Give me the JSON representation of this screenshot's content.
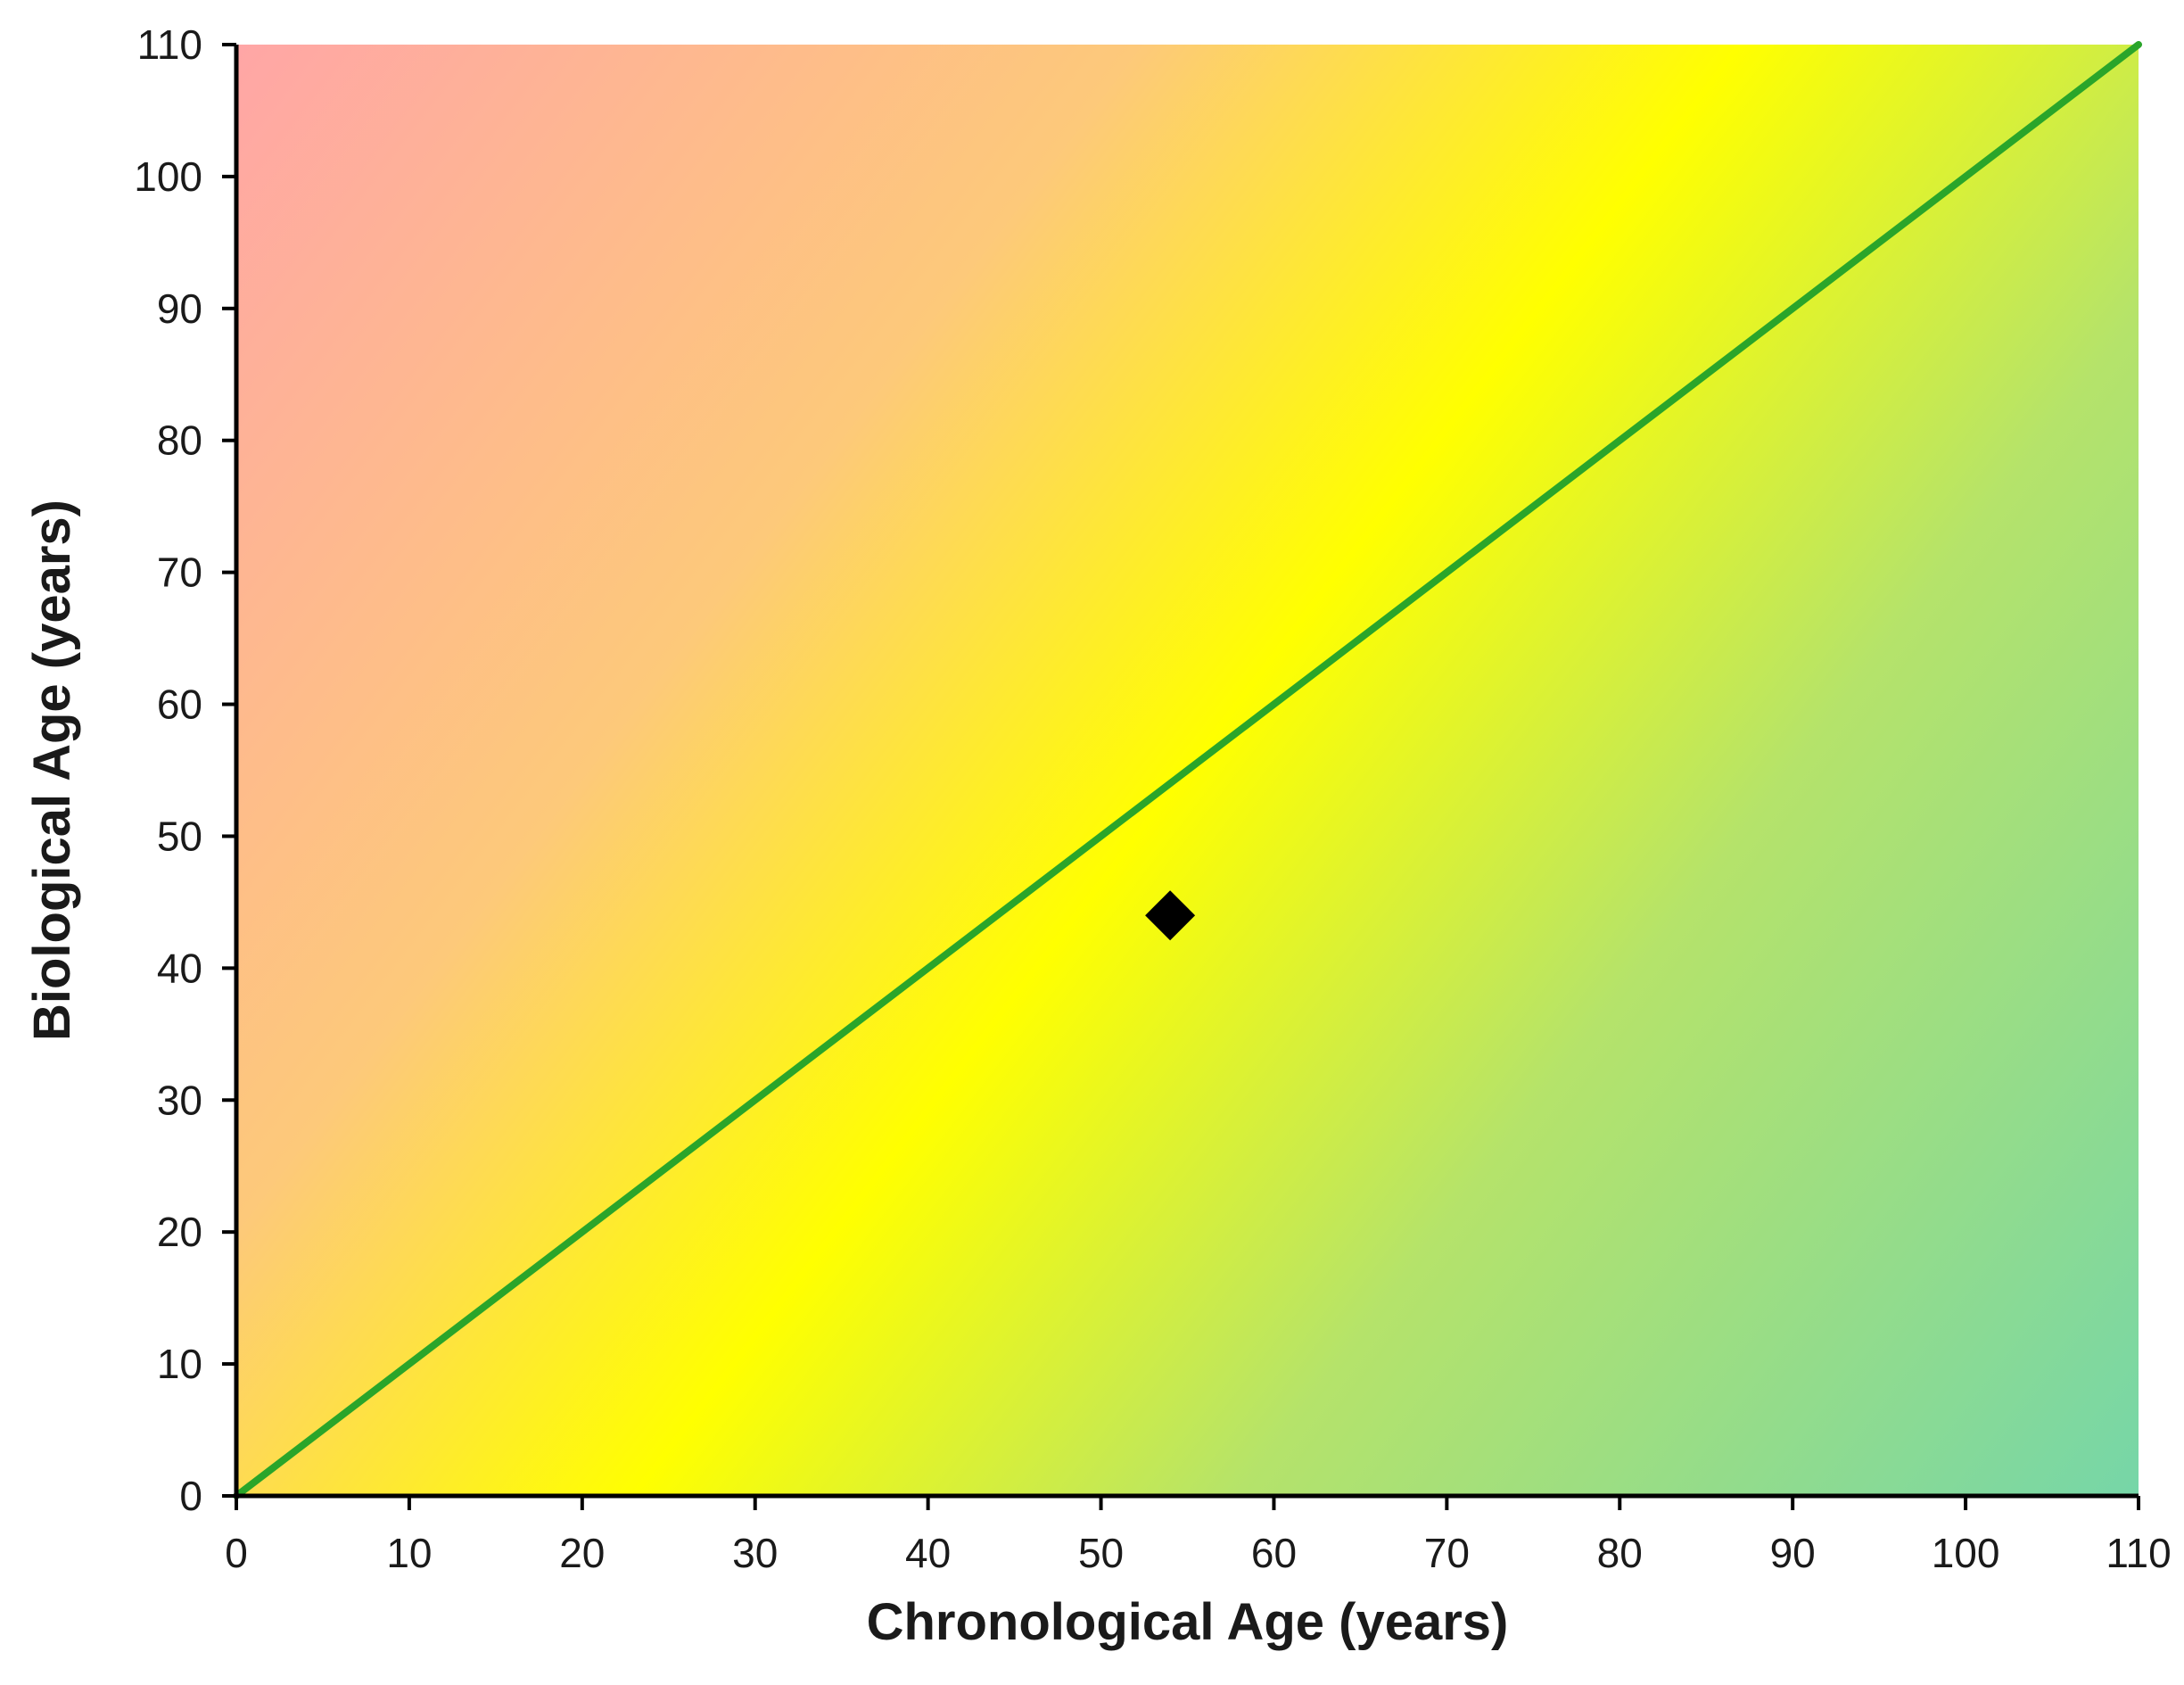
{
  "chart_data": {
    "type": "scatter",
    "xlabel": "Chronological Age (years)",
    "ylabel": "Biological Age (years)",
    "xlim": [
      0,
      110
    ],
    "ylim": [
      0,
      110
    ],
    "xticks": [
      "0",
      "10",
      "20",
      "30",
      "40",
      "50",
      "60",
      "70",
      "80",
      "90",
      "100",
      "110"
    ],
    "yticks": [
      "0",
      "10",
      "20",
      "30",
      "40",
      "50",
      "60",
      "70",
      "80",
      "90",
      "100",
      "110"
    ],
    "reference_line": {
      "x": [
        0,
        110
      ],
      "y": [
        0,
        110
      ],
      "color": "#2aa52a"
    },
    "points": [
      {
        "x": 54,
        "y": 44
      }
    ],
    "marker": "diamond",
    "marker_color": "#000000",
    "background_gradient": {
      "direction": "from top-left to bottom-right",
      "colors": [
        "#ffa6a6",
        "#fdc97a",
        "#ffff00",
        "#b5e36a",
        "#76d6a8"
      ]
    },
    "grid": false,
    "legend": "none"
  }
}
